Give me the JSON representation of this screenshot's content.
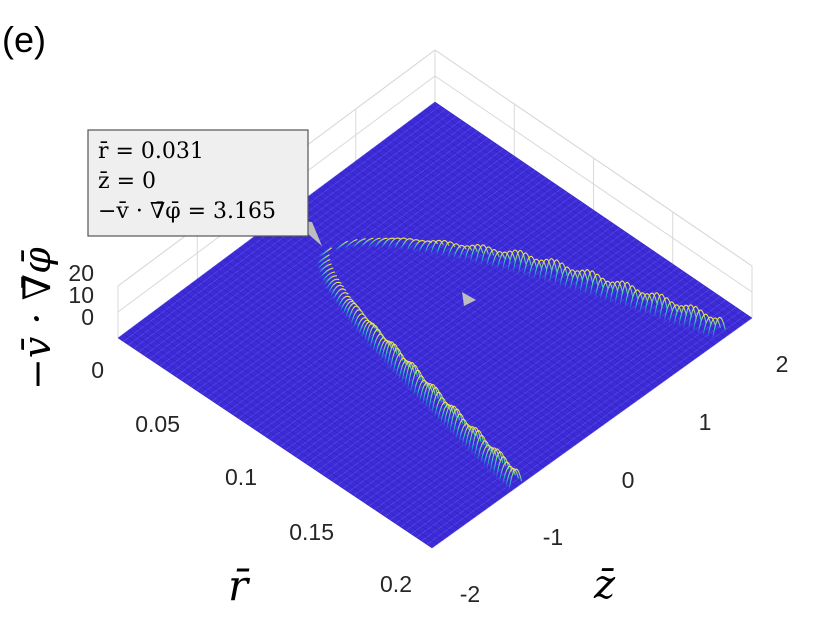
{
  "panel_label": "(e)",
  "colors": {
    "surface_low": "#3d2bd6",
    "surface_mid": "#22c4c6",
    "surface_high": "#f7e84a",
    "grid": "#d9d9d9",
    "datatip_bg": "#efefef",
    "datatip_border": "#555555"
  },
  "axes": {
    "zlabel": "−v̄ · ∇̄φ̄",
    "rlabel": "r̄",
    "zbar_label": "z̄"
  },
  "datatip": {
    "line1": "r̄ = 0.031",
    "line2": "z̄ = 0",
    "line3": "−v̄ · ∇̄φ̄ = 3.165"
  },
  "chart_data": {
    "type": "surface",
    "title": "",
    "xlabel": "z̄",
    "ylabel": "r̄",
    "zlabel": "−v̄ · ∇̄φ̄",
    "x_ticks": [
      "-2",
      "-1",
      "0",
      "1",
      "2"
    ],
    "y_ticks": [
      "0",
      "0.05",
      "0.1",
      "0.15",
      "0.2"
    ],
    "z_ticks": [
      "0",
      "10",
      "20"
    ],
    "xlim": [
      -2,
      2
    ],
    "ylim": [
      0,
      0.2
    ],
    "zlim": [
      0,
      20
    ],
    "colormap": "parula",
    "grid": true,
    "ridges": [
      {
        "description_branch": "lower",
        "r": [
          0.031,
          0.05,
          0.08,
          0.11,
          0.14
        ],
        "z": [
          0,
          -0.2,
          -0.42,
          -0.62,
          -0.8
        ]
      },
      {
        "description_branch": "upper",
        "r": [
          0.031,
          0.05,
          0.08,
          0.11,
          0.14
        ],
        "z": [
          0,
          0.35,
          0.75,
          1.15,
          1.5
        ]
      }
    ],
    "peak_value_approx": 20,
    "datatip_point": {
      "r": 0.031,
      "z": 0,
      "value": 3.165
    }
  }
}
